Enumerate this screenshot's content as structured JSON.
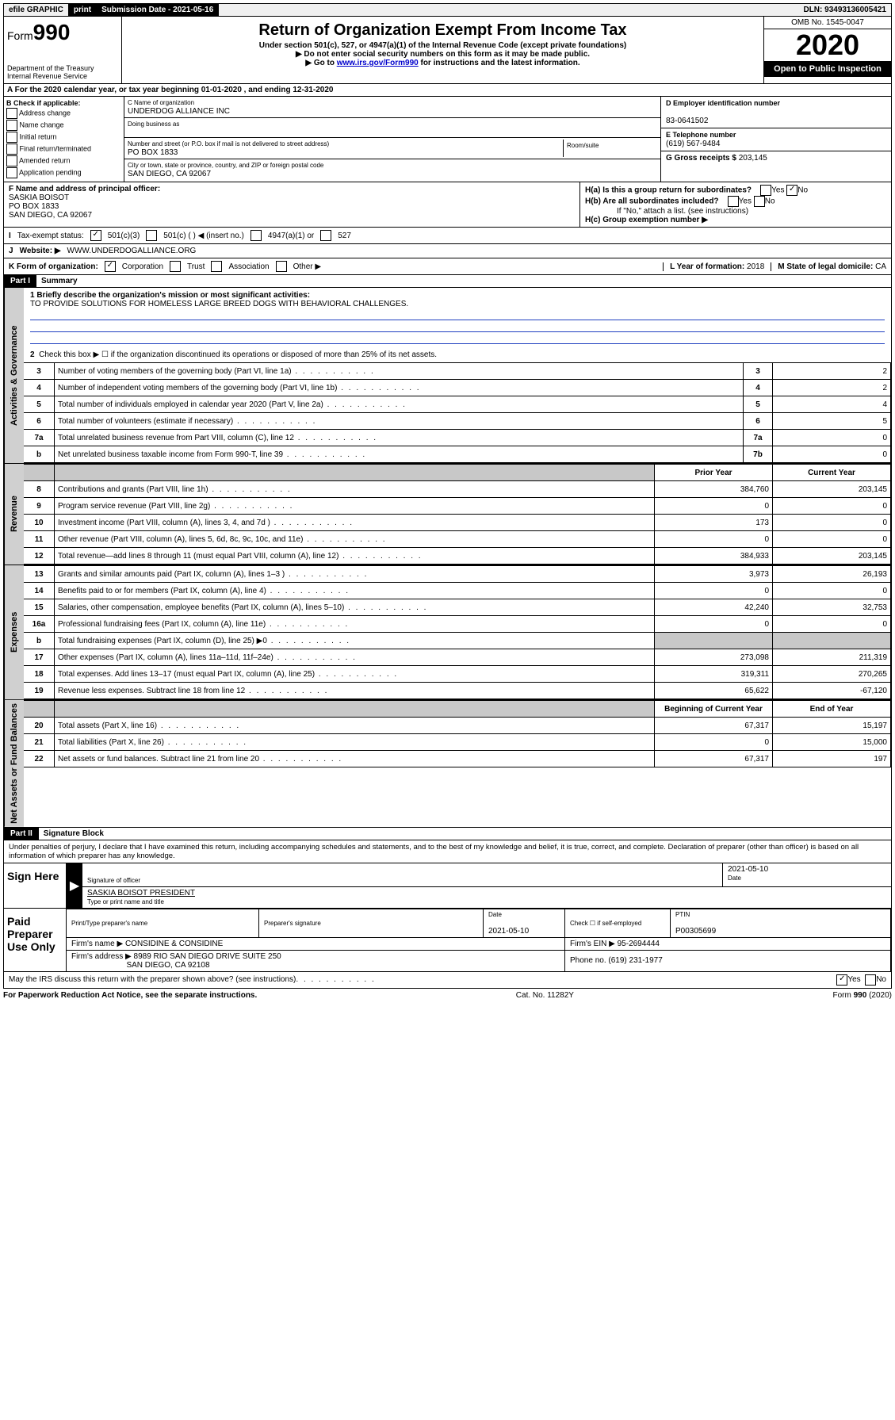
{
  "topbar": {
    "efile": "efile GRAPHIC",
    "print": "print",
    "sub_label": "Submission Date - 2021-05-16",
    "dln": "DLN: 93493136005421"
  },
  "header": {
    "form_prefix": "Form",
    "form_no": "990",
    "dept": "Department of the Treasury",
    "irs": "Internal Revenue Service",
    "title": "Return of Organization Exempt From Income Tax",
    "sub1": "Under section 501(c), 527, or 4947(a)(1) of the Internal Revenue Code (except private foundations)",
    "sub2": "▶ Do not enter social security numbers on this form as it may be made public.",
    "sub3_pre": "▶ Go to ",
    "sub3_link": "www.irs.gov/Form990",
    "sub3_post": " for instructions and the latest information.",
    "omb": "OMB No. 1545-0047",
    "year": "2020",
    "open": "Open to Public Inspection"
  },
  "row_a": "For the 2020 calendar year, or tax year beginning 01-01-2020    , and ending 12-31-2020",
  "box_b": {
    "title": "B Check if applicable:",
    "opts": [
      "Address change",
      "Name change",
      "Initial return",
      "Final return/terminated",
      "Amended return",
      "Application pending"
    ]
  },
  "box_c": {
    "name_lbl": "C Name of organization",
    "name": "UNDERDOG ALLIANCE INC",
    "dba_lbl": "Doing business as",
    "dba": "",
    "addr_lbl": "Number and street (or P.O. box if mail is not delivered to street address)",
    "room_lbl": "Room/suite",
    "addr": "PO BOX 1833",
    "city_lbl": "City or town, state or province, country, and ZIP or foreign postal code",
    "city": "SAN DIEGO, CA  92067"
  },
  "box_d": {
    "ein_lbl": "D Employer identification number",
    "ein": "83-0641502",
    "tel_lbl": "E Telephone number",
    "tel": "(619) 567-9484",
    "gross_lbl": "G Gross receipts $",
    "gross": "203,145"
  },
  "box_f": {
    "lbl": "F  Name and address of principal officer:",
    "name": "SASKIA BOISOT",
    "addr1": "PO BOX 1833",
    "addr2": "SAN DIEGO, CA  92067"
  },
  "box_h": {
    "a_lbl": "H(a)  Is this a group return for subordinates?",
    "b_lbl": "H(b)  Are all subordinates included?",
    "b_note": "If \"No,\" attach a list. (see instructions)",
    "c_lbl": "H(c)  Group exemption number ▶"
  },
  "line_i": {
    "lbl": "Tax-exempt status:",
    "o1": "501(c)(3)",
    "o2": "501(c) (  ) ◀ (insert no.)",
    "o3": "4947(a)(1) or",
    "o4": "527"
  },
  "line_j": {
    "lbl": "Website: ▶",
    "val": "WWW.UNDERDOGALLIANCE.ORG"
  },
  "line_k": {
    "lbl": "K Form of organization:",
    "o1": "Corporation",
    "o2": "Trust",
    "o3": "Association",
    "o4": "Other ▶",
    "l_lbl": "L Year of formation:",
    "l_val": "2018",
    "m_lbl": "M State of legal domicile:",
    "m_val": "CA"
  },
  "part1": {
    "hdr": "Part I",
    "title": "Summary",
    "q1_lbl": "1  Briefly describe the organization's mission or most significant activities:",
    "q1_val": "TO PROVIDE SOLUTIONS FOR HOMELESS LARGE BREED DOGS WITH BEHAVIORAL CHALLENGES.",
    "q2": "Check this box ▶ ☐  if the organization discontinued its operations or disposed of more than 25% of its net assets.",
    "vtab1": "Activities & Governance",
    "vtab2": "Revenue",
    "vtab3": "Expenses",
    "vtab4": "Net Assets or Fund Balances",
    "rows_top": [
      {
        "n": "3",
        "d": "Number of voting members of the governing body (Part VI, line 1a)",
        "lab": "3",
        "v": "2"
      },
      {
        "n": "4",
        "d": "Number of independent voting members of the governing body (Part VI, line 1b)",
        "lab": "4",
        "v": "2"
      },
      {
        "n": "5",
        "d": "Total number of individuals employed in calendar year 2020 (Part V, line 2a)",
        "lab": "5",
        "v": "4"
      },
      {
        "n": "6",
        "d": "Total number of volunteers (estimate if necessary)",
        "lab": "6",
        "v": "5"
      },
      {
        "n": "7a",
        "d": "Total unrelated business revenue from Part VIII, column (C), line 12",
        "lab": "7a",
        "v": "0"
      },
      {
        "n": "b",
        "d": "Net unrelated business taxable income from Form 990-T, line 39",
        "lab": "7b",
        "v": "0"
      }
    ],
    "col1": "Prior Year",
    "col2": "Current Year",
    "rows_rev": [
      {
        "n": "8",
        "d": "Contributions and grants (Part VIII, line 1h)",
        "v1": "384,760",
        "v2": "203,145"
      },
      {
        "n": "9",
        "d": "Program service revenue (Part VIII, line 2g)",
        "v1": "0",
        "v2": "0"
      },
      {
        "n": "10",
        "d": "Investment income (Part VIII, column (A), lines 3, 4, and 7d )",
        "v1": "173",
        "v2": "0"
      },
      {
        "n": "11",
        "d": "Other revenue (Part VIII, column (A), lines 5, 6d, 8c, 9c, 10c, and 11e)",
        "v1": "0",
        "v2": "0"
      },
      {
        "n": "12",
        "d": "Total revenue—add lines 8 through 11 (must equal Part VIII, column (A), line 12)",
        "v1": "384,933",
        "v2": "203,145"
      }
    ],
    "rows_exp": [
      {
        "n": "13",
        "d": "Grants and similar amounts paid (Part IX, column (A), lines 1–3 )",
        "v1": "3,973",
        "v2": "26,193"
      },
      {
        "n": "14",
        "d": "Benefits paid to or for members (Part IX, column (A), line 4)",
        "v1": "0",
        "v2": "0"
      },
      {
        "n": "15",
        "d": "Salaries, other compensation, employee benefits (Part IX, column (A), lines 5–10)",
        "v1": "42,240",
        "v2": "32,753"
      },
      {
        "n": "16a",
        "d": "Professional fundraising fees (Part IX, column (A), line 11e)",
        "v1": "0",
        "v2": "0"
      },
      {
        "n": "b",
        "d": "Total fundraising expenses (Part IX, column (D), line 25) ▶0",
        "v1": "",
        "v2": "",
        "shade": true
      },
      {
        "n": "17",
        "d": "Other expenses (Part IX, column (A), lines 11a–11d, 11f–24e)",
        "v1": "273,098",
        "v2": "211,319"
      },
      {
        "n": "18",
        "d": "Total expenses. Add lines 13–17 (must equal Part IX, column (A), line 25)",
        "v1": "319,311",
        "v2": "270,265"
      },
      {
        "n": "19",
        "d": "Revenue less expenses. Subtract line 18 from line 12",
        "v1": "65,622",
        "v2": "-67,120"
      }
    ],
    "col3": "Beginning of Current Year",
    "col4": "End of Year",
    "rows_net": [
      {
        "n": "20",
        "d": "Total assets (Part X, line 16)",
        "v1": "67,317",
        "v2": "15,197"
      },
      {
        "n": "21",
        "d": "Total liabilities (Part X, line 26)",
        "v1": "0",
        "v2": "15,000"
      },
      {
        "n": "22",
        "d": "Net assets or fund balances. Subtract line 21 from line 20",
        "v1": "67,317",
        "v2": "197"
      }
    ]
  },
  "part2": {
    "hdr": "Part II",
    "title": "Signature Block",
    "intro": "Under penalties of perjury, I declare that I have examined this return, including accompanying schedules and statements, and to the best of my knowledge and belief, it is true, correct, and complete. Declaration of preparer (other than officer) is based on all information of which preparer has any knowledge.",
    "sign_here": "Sign Here",
    "sig_of": "Signature of officer",
    "date1": "2021-05-10",
    "date_lbl": "Date",
    "typed": "SASKIA BOISOT  PRESIDENT",
    "typed_lbl": "Type or print name and title",
    "paid": "Paid Preparer Use Only",
    "prep_name_lbl": "Print/Type preparer's name",
    "prep_name": "",
    "prep_sig_lbl": "Preparer's signature",
    "date2_lbl": "Date",
    "date2": "2021-05-10",
    "self_lbl": "Check ☐ if self-employed",
    "ptin_lbl": "PTIN",
    "ptin": "P00305699",
    "firm_name_lbl": "Firm's name    ▶",
    "firm_name": "CONSIDINE & CONSIDINE",
    "firm_ein_lbl": "Firm's EIN ▶",
    "firm_ein": "95-2694444",
    "firm_addr_lbl": "Firm's address ▶",
    "firm_addr1": "8989 RIO SAN DIEGO DRIVE SUITE 250",
    "firm_addr2": "SAN DIEGO, CA  92108",
    "phone_lbl": "Phone no.",
    "phone": "(619) 231-1977",
    "discuss": "May the IRS discuss this return with the preparer shown above? (see instructions)"
  },
  "footer": {
    "left": "For Paperwork Reduction Act Notice, see the separate instructions.",
    "mid": "Cat. No. 11282Y",
    "right_pre": "Form ",
    "right_b": "990",
    "right_post": " (2020)"
  }
}
